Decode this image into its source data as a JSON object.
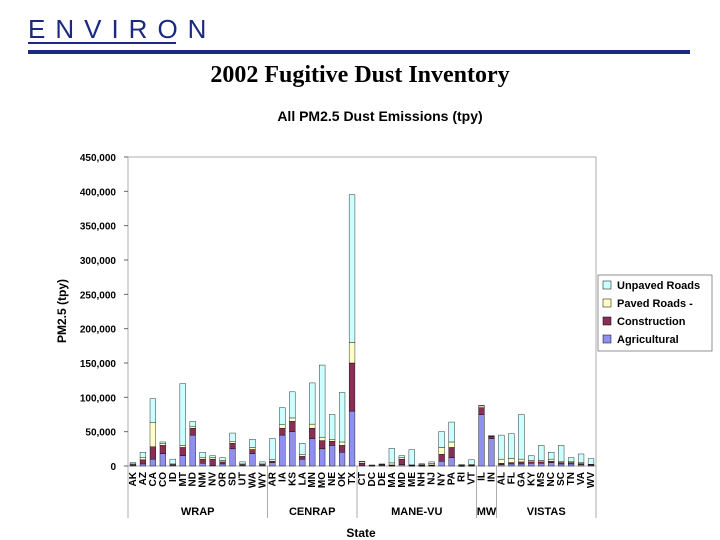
{
  "header": {
    "logo_text": "ENVIRON",
    "slide_title": "2002 Fugitive Dust Inventory"
  },
  "colors": {
    "brand": "#1b2a80",
    "Agricultural": "#8f8ff0",
    "Construction": "#8a2e55",
    "Paved Roads -": "#ffffc8",
    "Unpaved Roads": "#ccffff"
  },
  "chart_data": {
    "type": "bar",
    "stacked": true,
    "title": "All PM2.5 Dust Emissions (tpy)",
    "xlabel": "State",
    "ylabel": "PM2.5 (tpy)",
    "ylim": [
      0,
      450000
    ],
    "yticks": [
      "0",
      "50,000",
      "100,000",
      "150,000",
      "200,000",
      "250,000",
      "300,000",
      "350,000",
      "400,000",
      "450,000"
    ],
    "grid": false,
    "legend_position": "right",
    "categories": [
      "AK",
      "AZ",
      "CA",
      "CO",
      "ID",
      "MT",
      "ND",
      "NM",
      "NV",
      "OR",
      "SD",
      "UT",
      "WA",
      "WY",
      "AR",
      "IA",
      "KS",
      "LA",
      "MN",
      "MO",
      "NE",
      "OK",
      "TX",
      "CT",
      "DC",
      "DE",
      "MA",
      "MD",
      "ME",
      "NH",
      "NJ",
      "NY",
      "PA",
      "RI",
      "VT",
      "IL",
      "IN",
      "AL",
      "FL",
      "GA",
      "KY",
      "MS",
      "NC",
      "SC",
      "TN",
      "VA",
      "WV"
    ],
    "series": [
      {
        "name": "Agricultural",
        "values": [
          1000,
          3000,
          10000,
          18000,
          1000,
          15000,
          45000,
          4000,
          1000,
          3000,
          25000,
          1000,
          18000,
          1000,
          5000,
          45000,
          50000,
          10000,
          40000,
          25000,
          30000,
          20000,
          80000,
          1000,
          0,
          1000,
          500,
          2000,
          300,
          200,
          500,
          7000,
          12000,
          100,
          500,
          75000,
          40000,
          2000,
          3000,
          3000,
          4000,
          4000,
          5000,
          3000,
          3000,
          2000,
          1000
        ]
      },
      {
        "name": "Construction",
        "values": [
          1000,
          6000,
          18000,
          12000,
          1000,
          12000,
          10000,
          6000,
          9000,
          3000,
          8000,
          1000,
          6000,
          1000,
          2000,
          10000,
          15000,
          4000,
          15000,
          12000,
          6000,
          10000,
          70000,
          3000,
          500,
          1000,
          1000,
          8000,
          800,
          1000,
          1000,
          10000,
          15000,
          1000,
          1000,
          10000,
          3000,
          2000,
          2000,
          3000,
          2000,
          2000,
          2000,
          2000,
          2000,
          1500,
          1000
        ]
      },
      {
        "name": "Paved Roads -",
        "values": [
          1000,
          3000,
          35000,
          3000,
          1000,
          3000,
          3000,
          2000,
          2000,
          2000,
          3000,
          1000,
          3000,
          1000,
          2000,
          5000,
          5000,
          3000,
          6000,
          5000,
          3000,
          5000,
          30000,
          2000,
          500,
          500,
          3000,
          2000,
          500,
          1000,
          2000,
          10000,
          8000,
          500,
          500,
          3000,
          1000,
          6000,
          6000,
          4000,
          2000,
          2000,
          3000,
          2000,
          2000,
          2000,
          500
        ]
      },
      {
        "name": "Unpaved Roads",
        "values": [
          2000,
          8000,
          35000,
          2000,
          7000,
          90000,
          7000,
          8000,
          3000,
          4000,
          12000,
          3000,
          12000,
          3000,
          31000,
          25000,
          38000,
          16000,
          60000,
          105000,
          36000,
          72000,
          215000,
          1000,
          500,
          500,
          21000,
          3000,
          22000,
          1000,
          2500,
          23000,
          29000,
          400,
          7000,
          100,
          100,
          35000,
          36000,
          65000,
          7000,
          22000,
          10000,
          23000,
          5000,
          12000,
          8000
        ]
      }
    ],
    "groups": [
      {
        "label": "WRAP",
        "count": 14
      },
      {
        "label": "CENRAP",
        "count": 9
      },
      {
        "label": "MANE-VU",
        "count": 12
      },
      {
        "label": "MW",
        "count": 2
      },
      {
        "label": "VISTAS",
        "count": 10
      }
    ],
    "legend_order": [
      "Unpaved Roads",
      "Paved Roads -",
      "Construction",
      "Agricultural"
    ]
  }
}
